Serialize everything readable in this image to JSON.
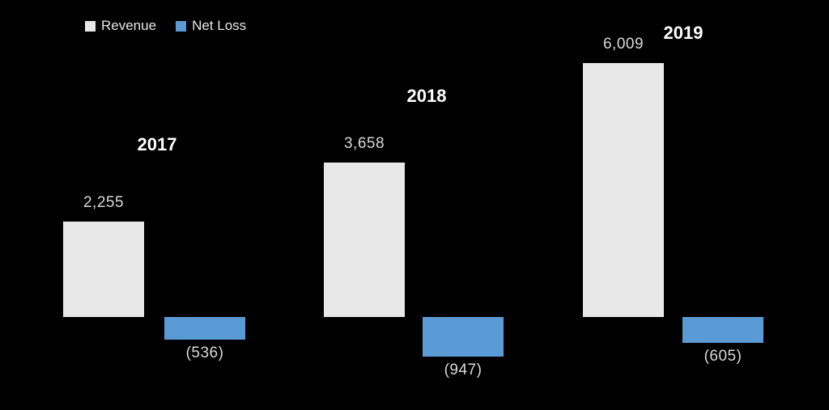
{
  "chart_data": {
    "type": "bar",
    "title": "",
    "categories": [
      "2017",
      "2018",
      "2019"
    ],
    "series": [
      {
        "name": "Revenue",
        "values": [
          2255,
          3658,
          6009
        ],
        "data_labels": [
          "2,255",
          "3,658",
          "6,009"
        ],
        "color": "#e8e8e8"
      },
      {
        "name": "Net Loss",
        "values": [
          -536,
          -947,
          -605
        ],
        "data_labels": [
          "(536)",
          "(947)",
          "(605)"
        ],
        "color": "#5b9bd5"
      }
    ],
    "ylim": [
      -1200,
      6500
    ],
    "grid": false,
    "legend_position": "top-left",
    "background": "#000000",
    "value_label_color": "#d9d9d9",
    "category_label_color": "#ffffff"
  }
}
